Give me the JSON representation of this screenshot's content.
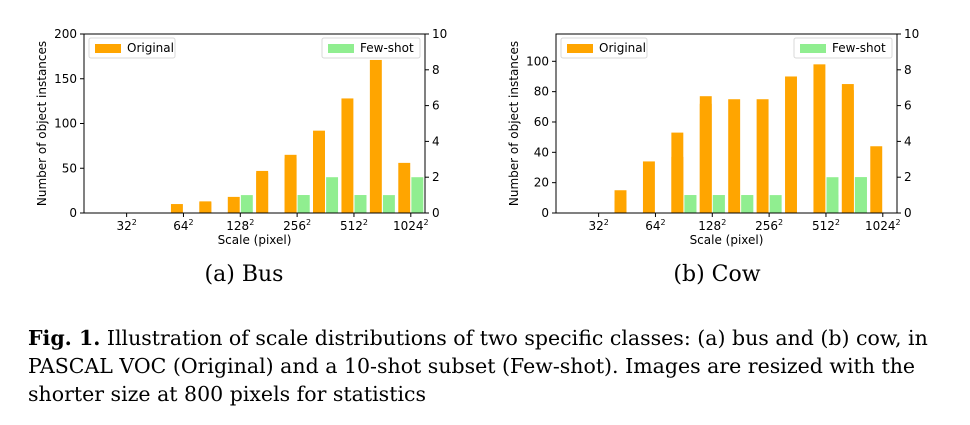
{
  "chart_data": [
    {
      "type": "bar",
      "categories": [
        "16",
        "32",
        "45",
        "64",
        "90",
        "128",
        "181",
        "256",
        "362",
        "512",
        "724",
        "1024"
      ],
      "xtick_labels": [
        {
          "base": "32",
          "exp": "2",
          "at": 1
        },
        {
          "base": "64",
          "exp": "2",
          "at": 3
        },
        {
          "base": "128",
          "exp": "2",
          "at": 5
        },
        {
          "base": "256",
          "exp": "2",
          "at": 7
        },
        {
          "base": "512",
          "exp": "2",
          "at": 9
        },
        {
          "base": "1024",
          "exp": "2",
          "at": 11
        }
      ],
      "series": [
        {
          "name": "Original",
          "axis": "left",
          "color": "#ffa500",
          "values": [
            0,
            0,
            0,
            10,
            12,
            18,
            45,
            61,
            87,
            128,
            171,
            56
          ],
          "values_b": [
            0,
            0,
            0,
            0,
            13,
            0,
            47,
            65,
            92,
            0,
            0,
            0
          ]
        },
        {
          "name": "Few-shot",
          "axis": "right",
          "color": "#90ee90",
          "values": [
            0,
            0,
            0,
            0,
            0,
            0,
            0,
            1,
            2,
            1,
            1,
            2
          ],
          "values_b": [
            0,
            0,
            0,
            0,
            0,
            1,
            0,
            1,
            0,
            1,
            0,
            0
          ]
        }
      ],
      "xlabel": "Scale (pixel)",
      "ylabel": "Number of object instances",
      "ylim": [
        0,
        200
      ],
      "yticks": [
        0,
        50,
        100,
        150,
        200
      ],
      "ylim_right": [
        0,
        10
      ],
      "yticks_right": [
        0,
        2,
        4,
        6,
        8,
        10
      ],
      "subcaption": "(a) Bus"
    },
    {
      "type": "bar",
      "categories": [
        "16",
        "32",
        "45",
        "64",
        "90",
        "128",
        "181",
        "256",
        "362",
        "512",
        "724",
        "1024"
      ],
      "xtick_labels": [
        {
          "base": "32",
          "exp": "2",
          "at": 1
        },
        {
          "base": "64",
          "exp": "2",
          "at": 3
        },
        {
          "base": "128",
          "exp": "2",
          "at": 5
        },
        {
          "base": "256",
          "exp": "2",
          "at": 7
        },
        {
          "base": "512",
          "exp": "2",
          "at": 9
        },
        {
          "base": "1024",
          "exp": "2",
          "at": 11
        }
      ],
      "series": [
        {
          "name": "Original",
          "axis": "left",
          "color": "#ffa500",
          "values": [
            0,
            0,
            8,
            34,
            37,
            77,
            75,
            75,
            90,
            98,
            81,
            44
          ],
          "values_b": [
            0,
            0,
            15,
            0,
            53,
            72,
            0,
            0,
            0,
            0,
            85,
            0
          ]
        },
        {
          "name": "Few-shot",
          "axis": "right",
          "color": "#90ee90",
          "values": [
            0,
            0,
            0,
            0,
            1,
            1,
            1,
            1,
            0,
            1,
            2,
            0
          ],
          "values_b": [
            0,
            0,
            0,
            0,
            1,
            1,
            1,
            0,
            0,
            2,
            2,
            0
          ]
        }
      ],
      "xlabel": "Scale (pixel)",
      "ylabel": "Number of object instances",
      "ylim": [
        0,
        118
      ],
      "yticks": [
        0,
        20,
        40,
        60,
        80,
        100
      ],
      "ylim_right": [
        0,
        10
      ],
      "yticks_right": [
        0,
        2,
        4,
        6,
        8,
        10
      ],
      "subcaption": "(b) Cow"
    }
  ],
  "caption": {
    "label": "Fig. 1.",
    "text": " Illustration of scale distributions of two specific classes: (a) bus and (b) cow, in PASCAL VOC (Original) and a 10-shot subset (Few-shot). Images are resized with the shorter size at 800 pixels for statistics"
  }
}
